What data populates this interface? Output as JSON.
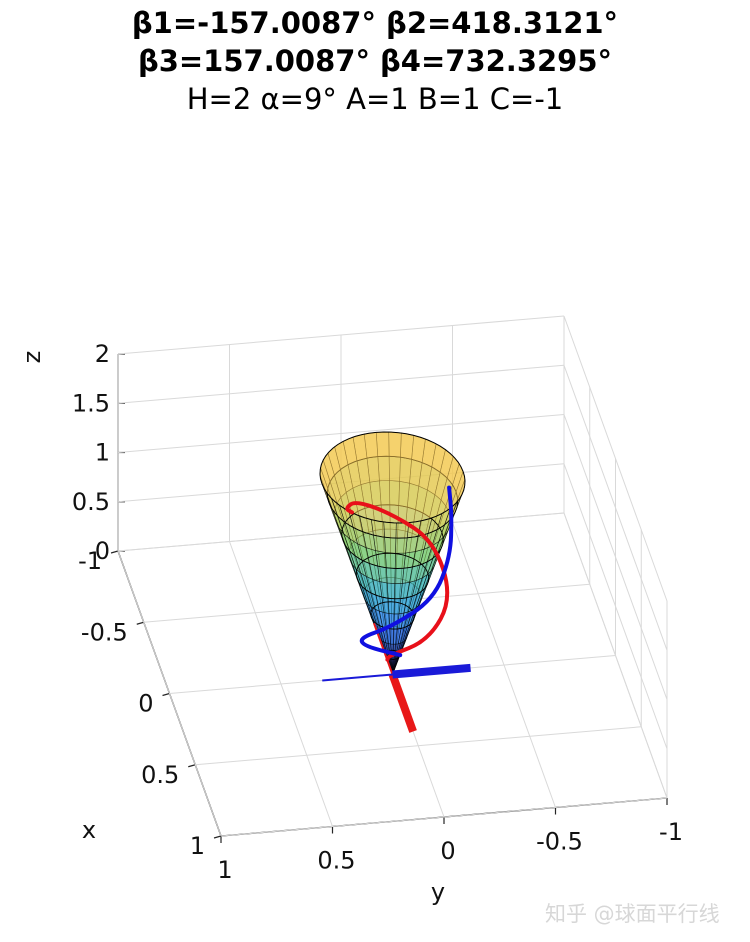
{
  "title_lines": [
    "β1=-157.0087° β2=418.3121°",
    "β3=157.0087° β4=732.3295°",
    "H=2 α=9° A=1 B=1 C=-1"
  ],
  "watermark": "知乎 @球面平行线",
  "chart_data": {
    "type": "3d-surface",
    "xlabel": "x",
    "ylabel": "y",
    "zlabel": "z",
    "x_ticks": [
      "1",
      "0.5",
      "0",
      "-0.5",
      "-1"
    ],
    "y_ticks": [
      "1",
      "0.5",
      "0",
      "-0.5",
      "-1"
    ],
    "z_ticks": [
      "0",
      "0.5",
      "1",
      "1.5",
      "2"
    ],
    "xlim": [
      -1,
      1
    ],
    "ylim": [
      -1,
      1
    ],
    "zlim": [
      0,
      2
    ],
    "grid": true,
    "parameters": {
      "H": 2,
      "alpha_deg": 9,
      "A": 1,
      "B": 1,
      "C": -1,
      "beta1_deg": -157.0087,
      "beta2_deg": 418.3121,
      "beta3_deg": 157.0087,
      "beta4_deg": 732.3295
    },
    "surface": {
      "shape": "cone",
      "apex": [
        0,
        0,
        0
      ],
      "height": 2,
      "half_angle_deg": 9,
      "colormap": "parula",
      "opacity": 0.6
    },
    "curves": [
      {
        "color": "#e8101a",
        "points": [
          [
            0.03,
            0.03,
            0.2
          ],
          [
            0.14,
            0.05,
            0.4
          ],
          [
            0.19,
            -0.12,
            0.6
          ],
          [
            0.08,
            -0.25,
            0.85
          ],
          [
            -0.15,
            -0.22,
            1.1
          ],
          [
            -0.22,
            -0.05,
            1.3
          ],
          [
            -0.2,
            0.12,
            1.5
          ],
          [
            -0.05,
            0.2,
            1.65
          ],
          [
            0.08,
            0.2,
            1.8
          ]
        ]
      },
      {
        "color": "#1010e0",
        "points": [
          [
            0.02,
            -0.03,
            0.22
          ],
          [
            0.06,
            0.14,
            0.4
          ],
          [
            0.1,
            0.17,
            0.55
          ],
          [
            0.18,
            0.05,
            0.75
          ],
          [
            0.15,
            -0.15,
            0.95
          ],
          [
            0.0,
            -0.26,
            1.15
          ],
          [
            -0.15,
            -0.3,
            1.35
          ],
          [
            -0.2,
            -0.3,
            1.55
          ]
        ]
      }
    ],
    "axis_markers": [
      {
        "color": "#e81818",
        "from": [
          0,
          0,
          0
        ],
        "to": [
          0.4,
          0,
          0
        ]
      },
      {
        "color": "#1a1ad8",
        "from": [
          0,
          0,
          0
        ],
        "to": [
          0,
          -0.35,
          0
        ]
      }
    ]
  }
}
